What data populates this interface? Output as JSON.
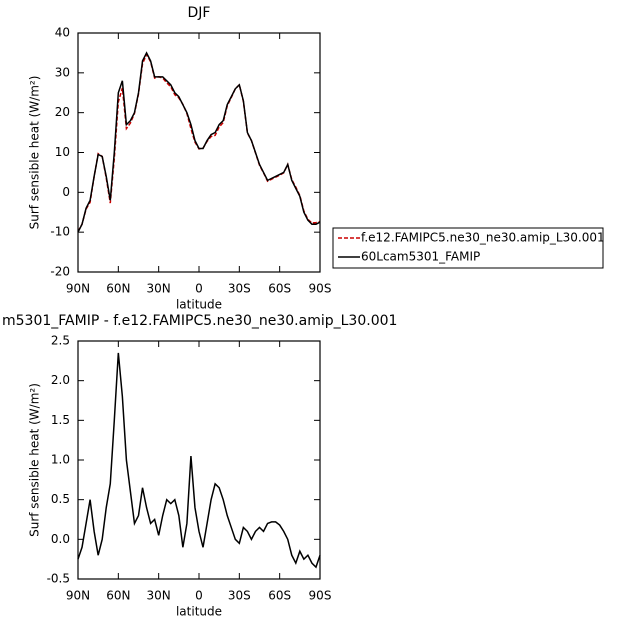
{
  "chart_data": [
    {
      "type": "line",
      "title": "DJF",
      "xlabel": "latitude",
      "ylabel": "Surf sensible heat (W/m²)",
      "x": [
        90,
        87,
        84,
        81,
        78,
        75,
        72,
        69,
        66,
        63,
        60,
        57,
        54,
        51,
        48,
        45,
        42,
        39,
        36,
        33,
        30,
        27,
        24,
        21,
        18,
        15,
        12,
        9,
        6,
        3,
        0,
        -3,
        -6,
        -9,
        -12,
        -15,
        -18,
        -21,
        -24,
        -27,
        -30,
        -33,
        -36,
        -39,
        -42,
        -45,
        -48,
        -51,
        -54,
        -57,
        -60,
        -63,
        -66,
        -69,
        -72,
        -75,
        -78,
        -81,
        -84,
        -87,
        -90
      ],
      "series": [
        {
          "name": "f.e12.FAMIPC5.ne30_ne30.amip_L30.001",
          "color": "#cc0000",
          "style": "dashed",
          "values": [
            -9.8,
            -8,
            -4.2,
            -2.5,
            3.9,
            9.7,
            9,
            3.6,
            -2.7,
            8.5,
            22.7,
            26.2,
            16,
            17.4,
            19.8,
            24.7,
            32.3,
            34.6,
            32.8,
            28.7,
            29,
            28.7,
            27.5,
            26.5,
            24.5,
            23.7,
            22.1,
            19.8,
            16,
            12.6,
            10.9,
            11.1,
            12.8,
            14,
            14.3,
            16.4,
            17.5,
            21.7,
            23.8,
            26,
            27,
            22.8,
            14.9,
            13,
            9.9,
            6.8,
            4.9,
            2.8,
            3.3,
            3.8,
            4.3,
            4.9,
            7,
            3.2,
            1.3,
            -0.8,
            -4.7,
            -6.8,
            -7.7,
            -7.6,
            -7.3
          ]
        },
        {
          "name": "60Lcam5301_FAMIP",
          "color": "#000000",
          "style": "solid",
          "values": [
            -10,
            -8,
            -4,
            -2,
            4,
            9.5,
            9,
            4,
            -2,
            10,
            25,
            28,
            17,
            18,
            20,
            25,
            33,
            35,
            33,
            29,
            29,
            29,
            28,
            27,
            25,
            24,
            22,
            20,
            17,
            13,
            11,
            11,
            13,
            14.5,
            15,
            17,
            18,
            22,
            24,
            26,
            27,
            23,
            15,
            13,
            10,
            7,
            5,
            3,
            3.5,
            4,
            4.5,
            5,
            7,
            3,
            1,
            -1,
            -5,
            -7,
            -8,
            -8,
            -7.5
          ]
        }
      ],
      "xlim": [
        90,
        -90
      ],
      "xticks": [
        {
          "value": 90,
          "label": "90N"
        },
        {
          "value": 60,
          "label": "60N"
        },
        {
          "value": 30,
          "label": "30N"
        },
        0,
        {
          "value": -30,
          "label": "30S"
        },
        {
          "value": -60,
          "label": "60S"
        },
        {
          "value": -90,
          "label": "90S"
        }
      ],
      "ylim": [
        -20,
        40
      ],
      "yticks": [
        -20,
        -10,
        0,
        10,
        20,
        30,
        40
      ],
      "legend": "right"
    },
    {
      "type": "line",
      "title": "m5301_FAMIP - f.e12.FAMIPC5.ne30_ne30.amip_L30.001",
      "xlabel": "latitude",
      "ylabel": "Surf sensible heat (W/m²)",
      "x": [
        90,
        87,
        84,
        81,
        78,
        75,
        72,
        69,
        66,
        63,
        60,
        57,
        54,
        51,
        48,
        45,
        42,
        39,
        36,
        33,
        30,
        27,
        24,
        21,
        18,
        15,
        12,
        9,
        6,
        3,
        0,
        -3,
        -6,
        -9,
        -12,
        -15,
        -18,
        -21,
        -24,
        -27,
        -30,
        -33,
        -36,
        -39,
        -42,
        -45,
        -48,
        -51,
        -54,
        -57,
        -60,
        -63,
        -66,
        -69,
        -72,
        -75,
        -78,
        -81,
        -84,
        -87,
        -90
      ],
      "series": [
        {
          "color": "#000000",
          "style": "solid",
          "values": [
            -0.25,
            -0.1,
            0.2,
            0.5,
            0.1,
            -0.2,
            0.0,
            0.4,
            0.7,
            1.5,
            2.35,
            1.8,
            1.0,
            0.6,
            0.2,
            0.3,
            0.65,
            0.4,
            0.2,
            0.25,
            0.05,
            0.3,
            0.5,
            0.45,
            0.5,
            0.3,
            -0.1,
            0.2,
            1.05,
            0.4,
            0.1,
            -0.1,
            0.2,
            0.5,
            0.7,
            0.65,
            0.5,
            0.3,
            0.15,
            0.0,
            -0.05,
            0.15,
            0.1,
            0.0,
            0.1,
            0.15,
            0.1,
            0.2,
            0.22,
            0.22,
            0.18,
            0.1,
            0.0,
            -0.2,
            -0.3,
            -0.15,
            -0.25,
            -0.2,
            -0.3,
            -0.35,
            -0.2
          ]
        }
      ],
      "xlim": [
        90,
        -90
      ],
      "xticks": [
        {
          "value": 90,
          "label": "90N"
        },
        {
          "value": 60,
          "label": "60N"
        },
        {
          "value": 30,
          "label": "30N"
        },
        0,
        {
          "value": -30,
          "label": "30S"
        },
        {
          "value": -60,
          "label": "60S"
        },
        {
          "value": -90,
          "label": "90S"
        }
      ],
      "ylim": [
        -0.5,
        2.5
      ],
      "yticks": [
        -0.5,
        {
          "value": 0,
          "label": "0.0"
        },
        0.5,
        {
          "value": 1,
          "label": "1.0"
        },
        1.5,
        {
          "value": 2,
          "label": "2.0"
        },
        2.5
      ]
    }
  ]
}
